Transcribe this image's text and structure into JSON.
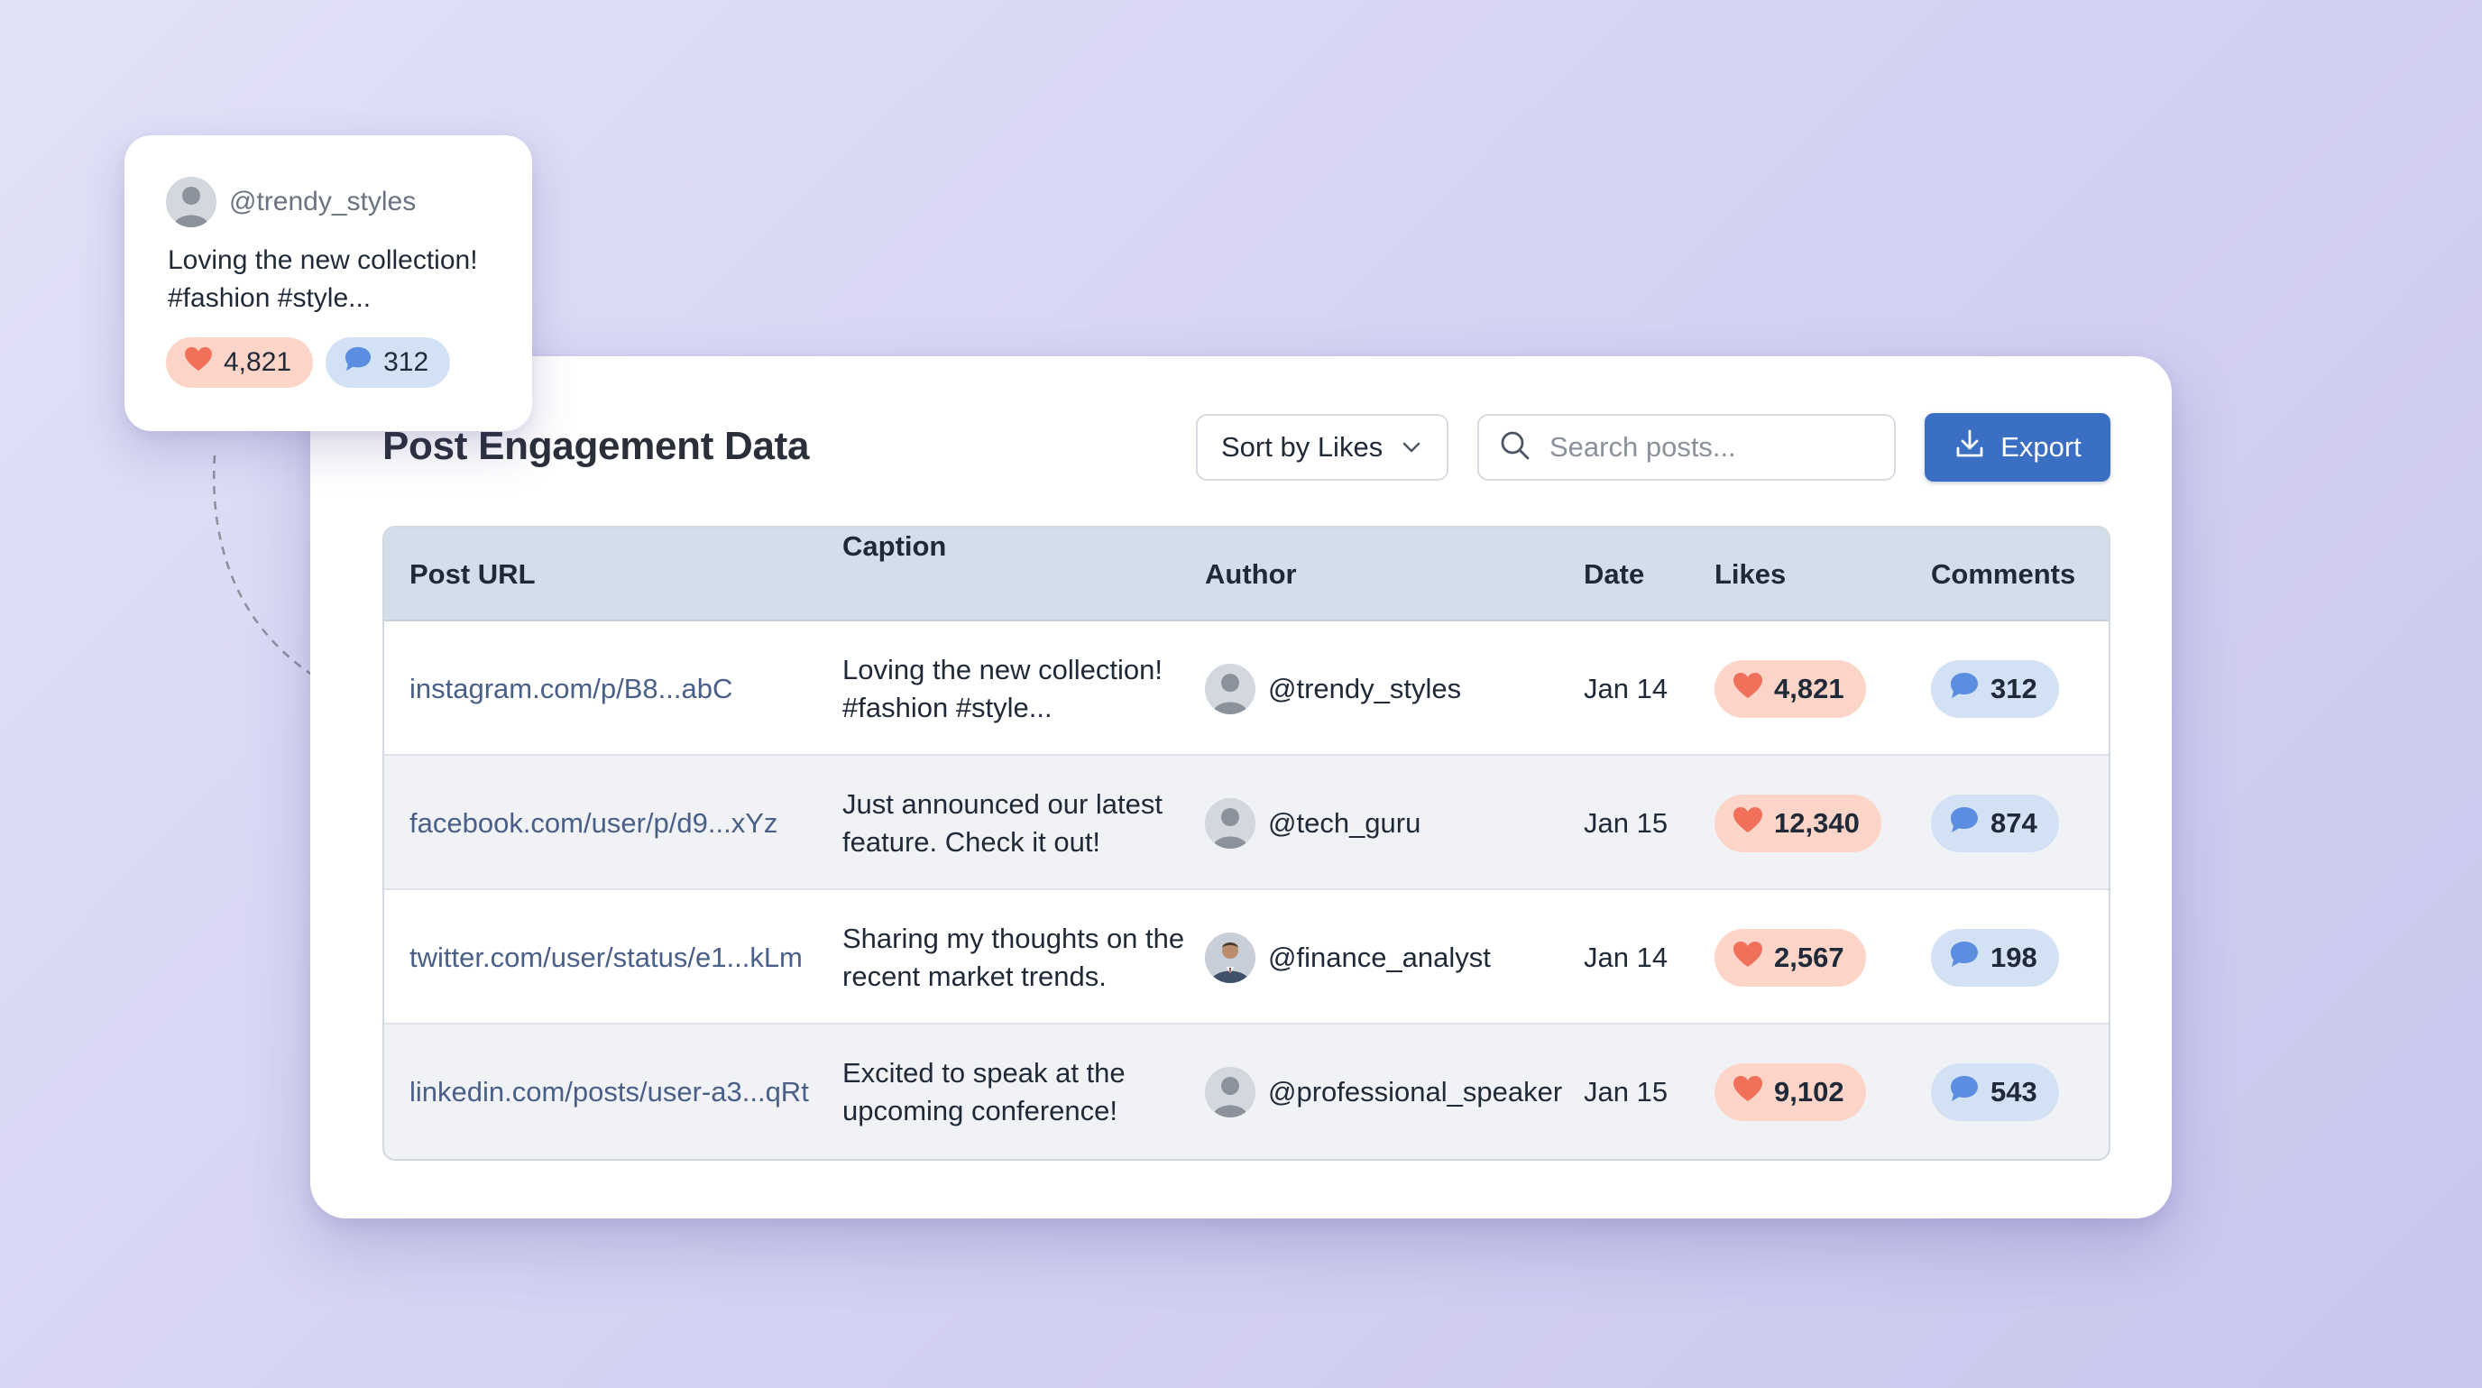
{
  "preview": {
    "author": "@trendy_styles",
    "caption": "Loving the new collection! #fashion #style...",
    "likes": "4,821",
    "comments": "312"
  },
  "header": {
    "title": "Post Engagement Data",
    "sort_label": "Sort by Likes",
    "search_placeholder": "Search posts...",
    "export_label": "Export"
  },
  "table": {
    "columns": [
      "Post URL",
      "Caption",
      "Author",
      "Date",
      "Likes",
      "Comments"
    ],
    "rows": [
      {
        "url": "instagram.com/p/B8...abC",
        "caption": "Loving the new collection! #fashion #style...",
        "author": "@trendy_styles",
        "date": "Jan 14",
        "likes": "4,821",
        "comments": "312"
      },
      {
        "url": "facebook.com/user/p/d9...xYz",
        "caption": "Just announced our latest feature. Check it out!",
        "author": "@tech_guru",
        "date": "Jan 15",
        "likes": "12,340",
        "comments": "874"
      },
      {
        "url": "twitter.com/user/status/e1...kLm",
        "caption": "Sharing my thoughts on the recent market trends.",
        "author": "@finance_analyst",
        "date": "Jan 14",
        "likes": "2,567",
        "comments": "198"
      },
      {
        "url": "linkedin.com/posts/user-a3...qRt",
        "caption": "Excited to speak at the upcoming conference!",
        "author": "@professional_speaker",
        "date": "Jan 15",
        "likes": "9,102",
        "comments": "543"
      }
    ]
  },
  "colors": {
    "accent": "#3b6fc4",
    "likes_pill": "#fcd5c8",
    "heart": "#f0705a",
    "comments_pill": "#d3e1f5",
    "bubble": "#5b8ee0",
    "header_row": "#d3deeb"
  },
  "icons": {
    "sort": "chevron-down-icon",
    "search": "search-icon",
    "export": "download-icon",
    "likes": "heart-icon",
    "comments": "comment-icon",
    "author": "avatar-icon"
  }
}
